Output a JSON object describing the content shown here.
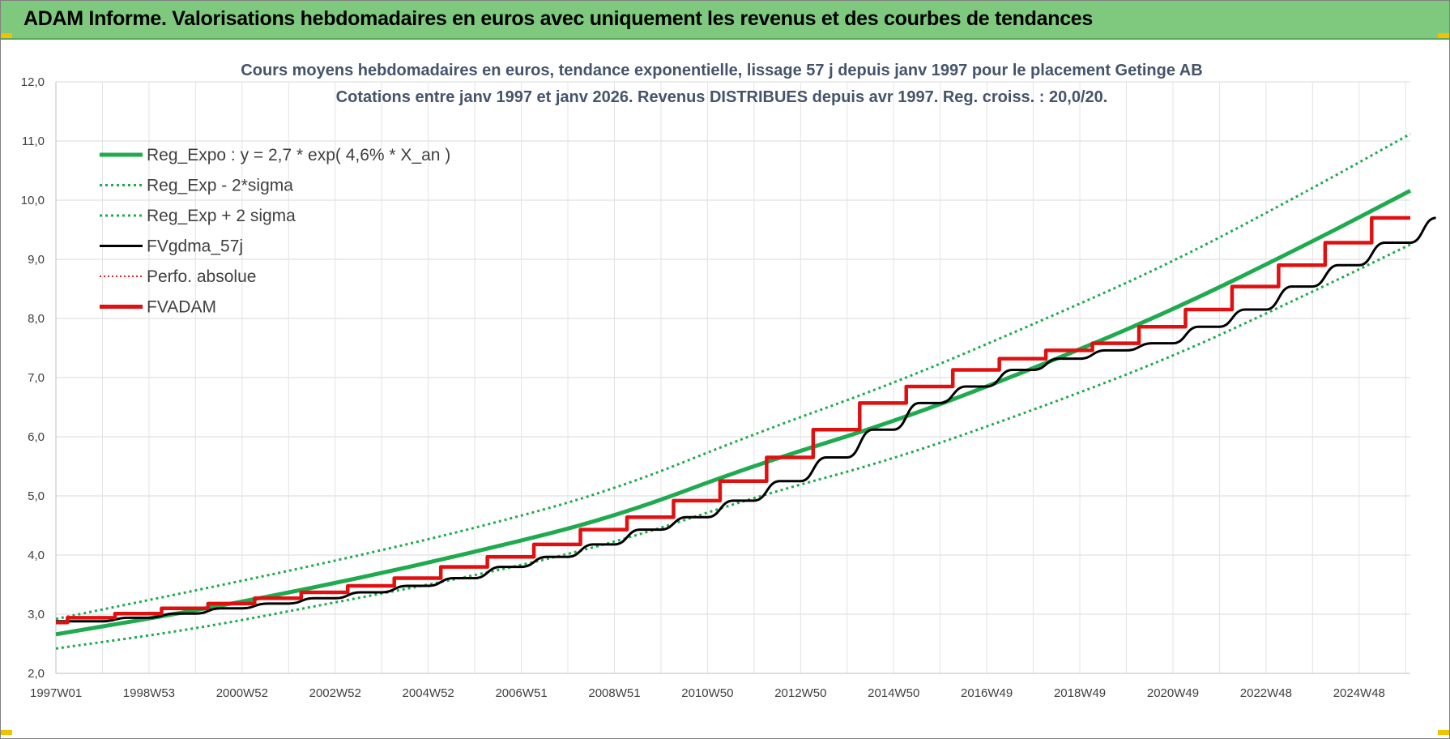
{
  "banner": {
    "title": "ADAM Informe. Valorisations hebdomadaires en euros avec uniquement les revenus et des courbes de tendances"
  },
  "chart_data": {
    "type": "line",
    "title_line1": "Cours moyens hebdomadaires en euros, tendance exponentielle, lissage 57 j depuis janv 1997  pour le placement Getinge AB",
    "title_line2": "Cotations entre janv 1997 et janv 2026. Revenus DISTRIBUES depuis avr 1997.  Reg. croiss. : 20,0/20.",
    "xlabel": "",
    "ylabel": "",
    "x_range_years": [
      1997.0,
      2026.1
    ],
    "x_tick_labels": [
      "1997W01",
      "1998W53",
      "2000W52",
      "2002W52",
      "2004W52",
      "2006W51",
      "2008W51",
      "2010W50",
      "2012W50",
      "2014W50",
      "2016W49",
      "2018W49",
      "2020W49",
      "2022W48",
      "2024W48"
    ],
    "x_tick_years": [
      1997.0,
      1999.0,
      2001.0,
      2003.0,
      2005.0,
      2007.0,
      2009.0,
      2011.0,
      2013.0,
      2015.0,
      2017.0,
      2019.0,
      2021.0,
      2023.0,
      2025.0
    ],
    "ylim": [
      2.0,
      12.0
    ],
    "y_ticks": [
      "2,0",
      "3,0",
      "4,0",
      "5,0",
      "6,0",
      "7,0",
      "8,0",
      "9,0",
      "10,0",
      "11,0",
      "12,0"
    ],
    "y_tick_values": [
      2,
      3,
      4,
      5,
      6,
      7,
      8,
      9,
      10,
      11,
      12
    ],
    "grid": true,
    "legend_position": "top-left",
    "series": [
      {
        "name": "Reg_Expo : y = 2,7 * exp( 4,6% *  X_an )",
        "color": "#1faa4f",
        "style": "solid-thick",
        "x": [
          1997.0,
          2000.0,
          2003.0,
          2006.0,
          2009.0,
          2012.0,
          2015.0,
          2018.0,
          2021.0,
          2024.0,
          2026.1
        ],
        "y": [
          2.66,
          3.06,
          3.52,
          4.05,
          4.64,
          5.52,
          6.25,
          7.15,
          8.14,
          9.3,
          10.16
        ]
      },
      {
        "name": "Reg_Exp - 2*sigma",
        "color": "#1faa4f",
        "style": "dotted",
        "x": [
          1997.0,
          2000.0,
          2003.0,
          2006.0,
          2009.0,
          2012.0,
          2015.0,
          2018.0,
          2021.0,
          2024.0,
          2026.1
        ],
        "y": [
          2.42,
          2.75,
          3.2,
          3.65,
          4.2,
          4.98,
          5.62,
          6.45,
          7.35,
          8.45,
          9.25
        ]
      },
      {
        "name": "Reg_Exp + 2 sigma",
        "color": "#1faa4f",
        "style": "dotted",
        "x": [
          1997.0,
          2000.0,
          2003.0,
          2006.0,
          2009.0,
          2012.0,
          2015.0,
          2018.0,
          2021.0,
          2024.0,
          2026.1
        ],
        "y": [
          2.92,
          3.4,
          3.9,
          4.45,
          5.1,
          6.05,
          6.9,
          7.9,
          8.95,
          10.2,
          11.12
        ]
      },
      {
        "name": "FVgdma_57j",
        "color": "#000000",
        "style": "solid-thin",
        "x": [
          1997.0,
          1998.0,
          1999.0,
          2000.0,
          2001.0,
          2002.0,
          2003.0,
          2004.0,
          2005.0,
          2006.0,
          2007.0,
          2008.0,
          2009.0,
          2010.0,
          2011.0,
          2012.0,
          2013.0,
          2014.0,
          2015.0,
          2016.0,
          2017.0,
          2018.0,
          2019.0,
          2020.0,
          2021.0,
          2022.0,
          2023.0,
          2024.0,
          2025.0,
          2026.1
        ],
        "y": [
          2.88,
          2.94,
          3.01,
          3.1,
          3.18,
          3.27,
          3.37,
          3.48,
          3.61,
          3.8,
          3.97,
          4.18,
          4.43,
          4.64,
          4.92,
          5.25,
          5.65,
          6.12,
          6.57,
          6.85,
          7.13,
          7.32,
          7.46,
          7.58,
          7.86,
          8.15,
          8.54,
          8.9,
          9.28,
          9.7
        ]
      },
      {
        "name": "Perfo. absolue",
        "color": "#e02020",
        "style": "dotted-thin",
        "x": [],
        "y": []
      },
      {
        "name": "FVADAM",
        "color": "#e01010",
        "style": "step-thick",
        "x": [
          1997.0,
          1997.25,
          1998.27,
          1999.27,
          2000.27,
          2001.27,
          2002.27,
          2003.27,
          2004.27,
          2005.27,
          2006.27,
          2007.27,
          2008.27,
          2009.27,
          2010.27,
          2011.27,
          2012.27,
          2013.27,
          2014.27,
          2015.27,
          2016.27,
          2017.27,
          2018.27,
          2019.27,
          2020.27,
          2021.27,
          2022.27,
          2023.27,
          2024.27,
          2025.27,
          2026.1
        ],
        "y": [
          2.86,
          2.94,
          3.01,
          3.1,
          3.18,
          3.27,
          3.37,
          3.48,
          3.61,
          3.8,
          3.97,
          4.18,
          4.43,
          4.64,
          4.92,
          5.25,
          5.65,
          6.12,
          6.57,
          6.85,
          7.13,
          7.32,
          7.46,
          7.58,
          7.86,
          8.15,
          8.54,
          8.9,
          9.28,
          9.7,
          9.7
        ]
      }
    ]
  }
}
